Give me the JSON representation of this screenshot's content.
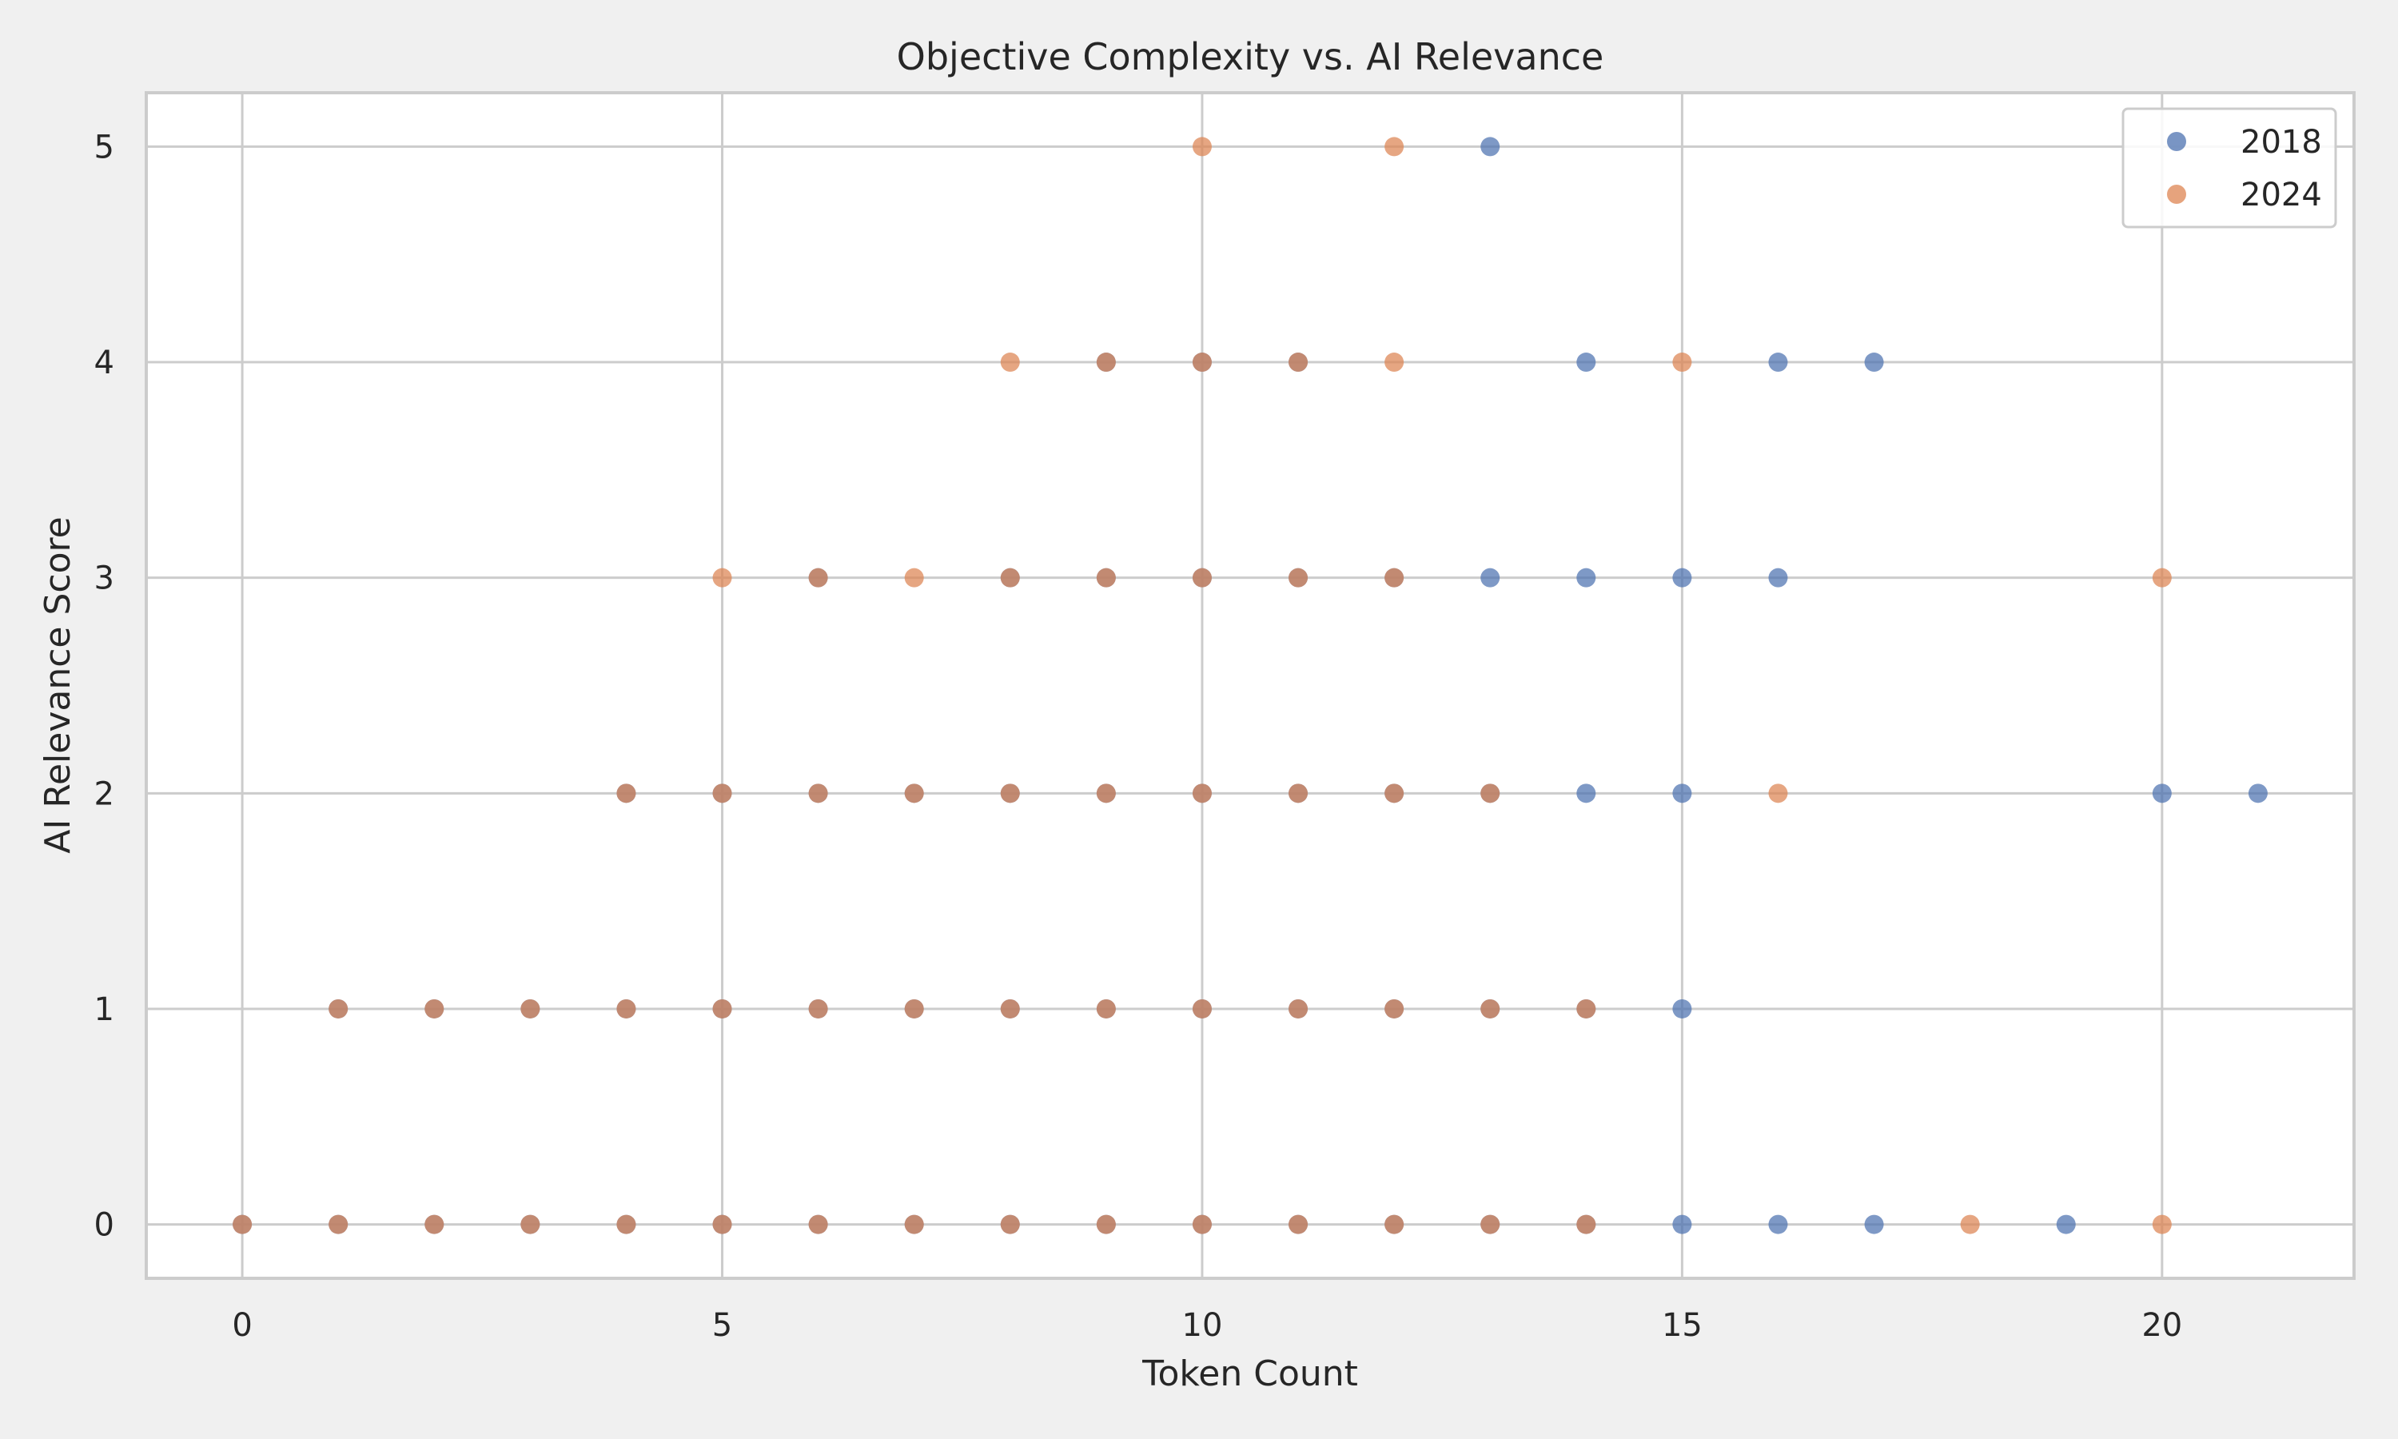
{
  "chart_data": {
    "type": "scatter",
    "title": "Objective Complexity vs. AI Relevance",
    "xlabel": "Token Count",
    "ylabel": "AI Relevance Score",
    "xlim": [
      -1,
      22
    ],
    "ylim": [
      -0.25,
      5.25
    ],
    "xticks": [
      0,
      5,
      10,
      15,
      20
    ],
    "yticks": [
      0,
      1,
      2,
      3,
      4,
      5
    ],
    "grid": true,
    "legend": "top-right",
    "series": [
      {
        "name": "2018",
        "color": "#4c72b0",
        "points": [
          [
            0,
            0
          ],
          [
            1,
            0
          ],
          [
            2,
            0
          ],
          [
            3,
            0
          ],
          [
            4,
            0
          ],
          [
            5,
            0
          ],
          [
            6,
            0
          ],
          [
            7,
            0
          ],
          [
            8,
            0
          ],
          [
            9,
            0
          ],
          [
            10,
            0
          ],
          [
            11,
            0
          ],
          [
            12,
            0
          ],
          [
            13,
            0
          ],
          [
            14,
            0
          ],
          [
            15,
            0
          ],
          [
            16,
            0
          ],
          [
            17,
            0
          ],
          [
            19,
            0
          ],
          [
            1,
            1
          ],
          [
            2,
            1
          ],
          [
            3,
            1
          ],
          [
            4,
            1
          ],
          [
            5,
            1
          ],
          [
            6,
            1
          ],
          [
            7,
            1
          ],
          [
            8,
            1
          ],
          [
            9,
            1
          ],
          [
            10,
            1
          ],
          [
            11,
            1
          ],
          [
            12,
            1
          ],
          [
            13,
            1
          ],
          [
            14,
            1
          ],
          [
            15,
            1
          ],
          [
            4,
            2
          ],
          [
            5,
            2
          ],
          [
            6,
            2
          ],
          [
            7,
            2
          ],
          [
            8,
            2
          ],
          [
            9,
            2
          ],
          [
            10,
            2
          ],
          [
            11,
            2
          ],
          [
            12,
            2
          ],
          [
            13,
            2
          ],
          [
            14,
            2
          ],
          [
            15,
            2
          ],
          [
            20,
            2
          ],
          [
            21,
            2
          ],
          [
            6,
            3
          ],
          [
            8,
            3
          ],
          [
            9,
            3
          ],
          [
            10,
            3
          ],
          [
            11,
            3
          ],
          [
            12,
            3
          ],
          [
            13,
            3
          ],
          [
            14,
            3
          ],
          [
            15,
            3
          ],
          [
            16,
            3
          ],
          [
            9,
            4
          ],
          [
            10,
            4
          ],
          [
            11,
            4
          ],
          [
            14,
            4
          ],
          [
            16,
            4
          ],
          [
            17,
            4
          ],
          [
            13,
            5
          ]
        ]
      },
      {
        "name": "2024",
        "color": "#dd8452",
        "points": [
          [
            0,
            0
          ],
          [
            1,
            0
          ],
          [
            2,
            0
          ],
          [
            3,
            0
          ],
          [
            4,
            0
          ],
          [
            5,
            0
          ],
          [
            6,
            0
          ],
          [
            7,
            0
          ],
          [
            8,
            0
          ],
          [
            9,
            0
          ],
          [
            10,
            0
          ],
          [
            11,
            0
          ],
          [
            12,
            0
          ],
          [
            13,
            0
          ],
          [
            14,
            0
          ],
          [
            18,
            0
          ],
          [
            20,
            0
          ],
          [
            1,
            1
          ],
          [
            2,
            1
          ],
          [
            3,
            1
          ],
          [
            4,
            1
          ],
          [
            5,
            1
          ],
          [
            6,
            1
          ],
          [
            7,
            1
          ],
          [
            8,
            1
          ],
          [
            9,
            1
          ],
          [
            10,
            1
          ],
          [
            11,
            1
          ],
          [
            12,
            1
          ],
          [
            13,
            1
          ],
          [
            14,
            1
          ],
          [
            4,
            2
          ],
          [
            5,
            2
          ],
          [
            6,
            2
          ],
          [
            7,
            2
          ],
          [
            8,
            2
          ],
          [
            9,
            2
          ],
          [
            10,
            2
          ],
          [
            11,
            2
          ],
          [
            12,
            2
          ],
          [
            13,
            2
          ],
          [
            16,
            2
          ],
          [
            5,
            3
          ],
          [
            6,
            3
          ],
          [
            7,
            3
          ],
          [
            8,
            3
          ],
          [
            9,
            3
          ],
          [
            10,
            3
          ],
          [
            11,
            3
          ],
          [
            12,
            3
          ],
          [
            20,
            3
          ],
          [
            8,
            4
          ],
          [
            9,
            4
          ],
          [
            10,
            4
          ],
          [
            11,
            4
          ],
          [
            12,
            4
          ],
          [
            15,
            4
          ],
          [
            10,
            5
          ],
          [
            12,
            5
          ]
        ]
      }
    ]
  }
}
